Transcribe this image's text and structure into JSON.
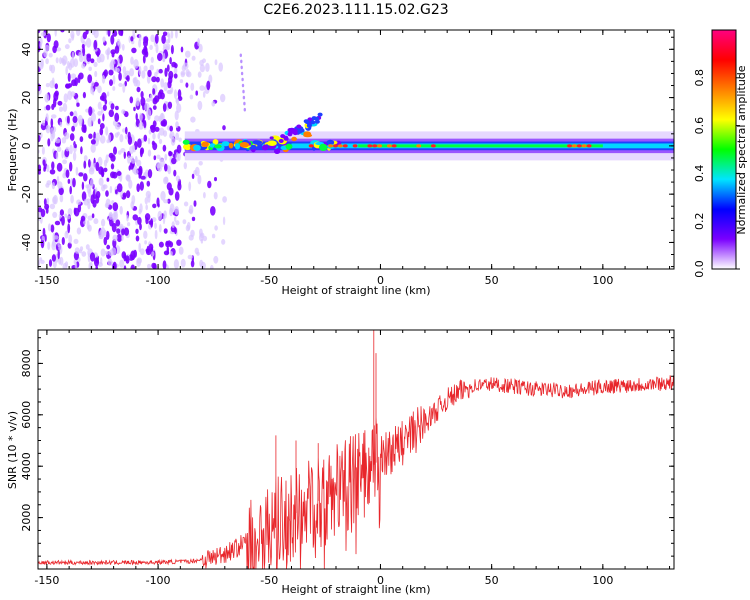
{
  "title": "C2E6.2023.111.15.02.G23",
  "chart_data": [
    {
      "type": "heatmap",
      "xlabel": "Height of straight line (km)",
      "ylabel": "Frequency (Hz)",
      "xlim": [
        -154,
        132
      ],
      "ylim": [
        -51,
        48
      ],
      "xticks": [
        -150,
        -100,
        -50,
        0,
        50,
        100
      ],
      "yticks": [
        -40,
        -20,
        0,
        20,
        40
      ],
      "colorbar": {
        "label": "Normalized spectral amplitude",
        "range": [
          0,
          1
        ],
        "ticks": [
          0.0,
          0.2,
          0.4,
          0.6,
          0.8
        ],
        "colormap": [
          "#ffffff",
          "#7a00ff",
          "#0000ff",
          "#00e5ff",
          "#00ff00",
          "#ffff00",
          "#ff8000",
          "#ff0000",
          "#ff0080"
        ]
      },
      "features": {
        "noise_region_x": [
          -154,
          -70
        ],
        "signal_center_hz": 0,
        "signal_start_x": -88,
        "strong_segments_x": [
          [
            -40,
            25
          ],
          [
            85,
            95
          ]
        ]
      }
    },
    {
      "type": "line",
      "xlabel": "Height of straight line (km)",
      "ylabel": "SNR (10 * v/v)",
      "xlim": [
        -154,
        132
      ],
      "ylim": [
        0,
        9300
      ],
      "xticks": [
        -150,
        -100,
        -50,
        0,
        50,
        100
      ],
      "yticks": [
        2000,
        4000,
        6000,
        8000
      ],
      "color": "#e8262b",
      "trend": {
        "x": [
          -154,
          -120,
          -100,
          -85,
          -75,
          -65,
          -55,
          -45,
          -35,
          -25,
          -15,
          -5,
          0,
          10,
          20,
          30,
          40,
          50,
          60,
          70,
          80,
          90,
          100,
          110,
          120,
          132
        ],
        "y": [
          250,
          250,
          260,
          300,
          450,
          800,
          1400,
          1900,
          2300,
          2800,
          3300,
          3900,
          4300,
          4900,
          5700,
          6600,
          7100,
          7200,
          7100,
          7000,
          6950,
          6950,
          7100,
          7150,
          7200,
          7250
        ]
      },
      "spikes": [
        {
          "x": -3,
          "y": 9300
        },
        {
          "x": -2,
          "y": 8400
        },
        {
          "x": -38,
          "y": 5000
        },
        {
          "x": -28,
          "y": 4900
        },
        {
          "x": -47,
          "y": 5200
        }
      ]
    }
  ]
}
